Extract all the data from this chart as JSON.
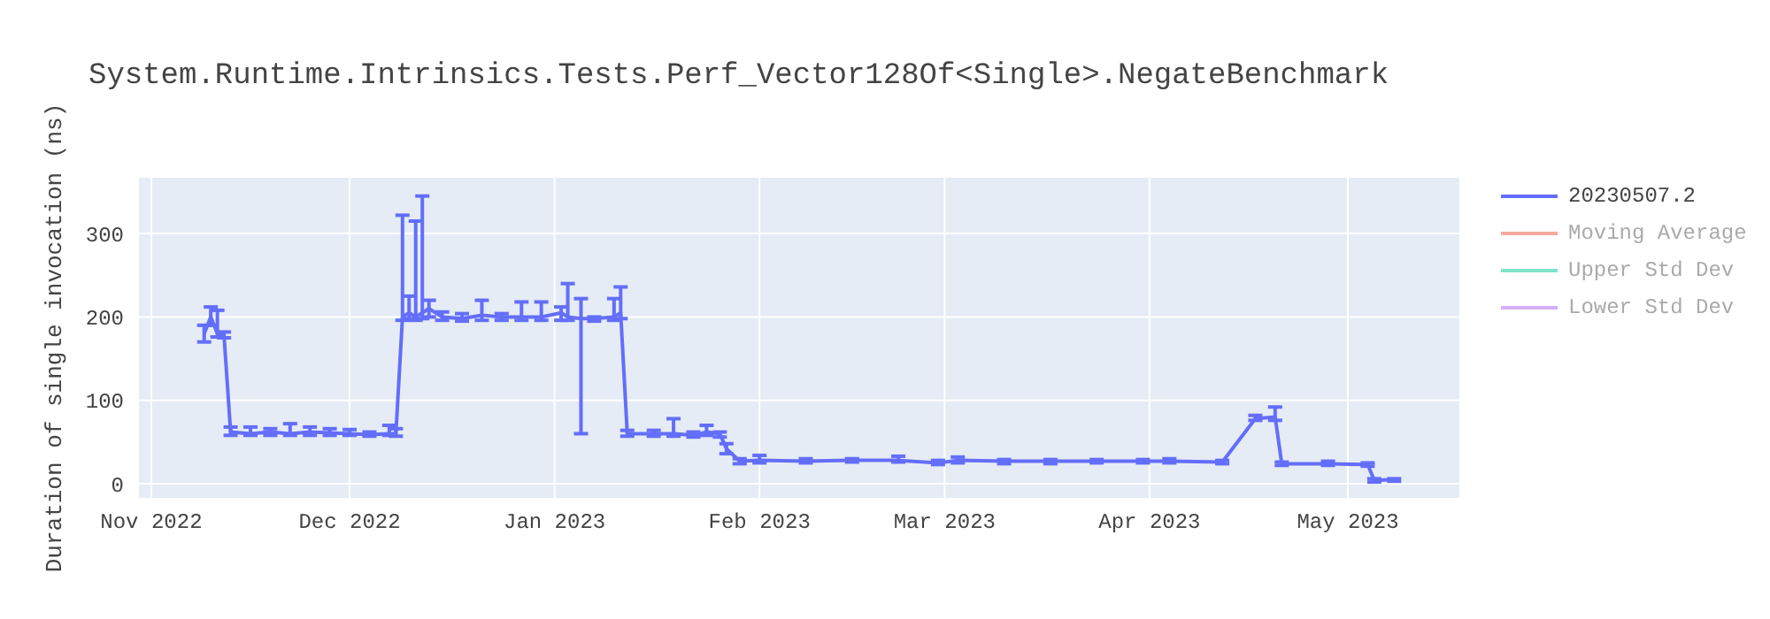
{
  "chart_data": {
    "type": "line",
    "title": "System.Runtime.Intrinsics.Tests.Perf_Vector128Of<Single>.NegateBenchmark",
    "ylabel": "Duration of single invocation (ns)",
    "x": [
      "2022-11-09",
      "2022-11-10",
      "2022-11-11",
      "2022-11-12",
      "2022-11-13",
      "2022-11-16",
      "2022-11-19",
      "2022-11-22",
      "2022-11-25",
      "2022-11-28",
      "2022-12-01",
      "2022-12-04",
      "2022-12-07",
      "2022-12-08",
      "2022-12-09",
      "2022-12-10",
      "2022-12-11",
      "2022-12-12",
      "2022-12-13",
      "2022-12-15",
      "2022-12-18",
      "2022-12-21",
      "2022-12-24",
      "2022-12-27",
      "2022-12-30",
      "2023-01-02",
      "2023-01-03",
      "2023-01-05",
      "2023-01-07",
      "2023-01-10",
      "2023-01-11",
      "2023-01-12",
      "2023-01-16",
      "2023-01-19",
      "2023-01-22",
      "2023-01-24",
      "2023-01-26",
      "2023-01-27",
      "2023-01-29",
      "2023-02-01",
      "2023-02-08",
      "2023-02-15",
      "2023-02-22",
      "2023-02-28",
      "2023-03-03",
      "2023-03-10",
      "2023-03-17",
      "2023-03-24",
      "2023-03-31",
      "2023-04-04",
      "2023-04-12",
      "2023-04-17",
      "2023-04-20",
      "2023-04-21",
      "2023-04-28",
      "2023-05-04",
      "2023-05-05",
      "2023-05-08"
    ],
    "series": [
      {
        "name": "20230507.2",
        "color": "#636efa",
        "values": [
          180,
          200,
          180,
          178,
          62,
          60,
          62,
          60,
          62,
          61,
          60,
          59,
          60,
          60,
          200,
          205,
          200,
          205,
          210,
          200,
          198,
          202,
          200,
          200,
          200,
          205,
          200,
          198,
          198,
          200,
          205,
          60,
          60,
          60,
          58,
          62,
          60,
          42,
          27,
          28,
          27,
          28,
          28,
          25,
          28,
          27,
          27,
          27,
          27,
          27,
          26,
          78,
          80,
          24,
          24,
          23,
          4,
          5
        ],
        "errors": [
          10,
          [
            190,
            212
          ],
          [
            176,
            208
          ],
          [
            175,
            182
          ],
          [
            58,
            68
          ],
          [
            58,
            68
          ],
          [
            58,
            66
          ],
          [
            58,
            72
          ],
          [
            58,
            68
          ],
          [
            58,
            66
          ],
          [
            58,
            65
          ],
          [
            57,
            62
          ],
          [
            58,
            70
          ],
          [
            57,
            66
          ],
          [
            196,
            322
          ],
          [
            198,
            225
          ],
          [
            196,
            315
          ],
          [
            198,
            345
          ],
          [
            200,
            220
          ],
          [
            196,
            206
          ],
          [
            195,
            204
          ],
          [
            196,
            220
          ],
          [
            196,
            204
          ],
          [
            196,
            218
          ],
          [
            196,
            218
          ],
          [
            196,
            212
          ],
          [
            196,
            240
          ],
          [
            60,
            222
          ],
          [
            195,
            200
          ],
          [
            196,
            222
          ],
          [
            198,
            236
          ],
          [
            57,
            64
          ],
          [
            57,
            64
          ],
          [
            57,
            78
          ],
          [
            56,
            62
          ],
          [
            58,
            70
          ],
          [
            56,
            62
          ],
          [
            36,
            48
          ],
          [
            24,
            30
          ],
          [
            25,
            34
          ],
          [
            25,
            30
          ],
          [
            26,
            30
          ],
          [
            26,
            33
          ],
          [
            23,
            28
          ],
          [
            25,
            32
          ],
          [
            24,
            29
          ],
          [
            24,
            29
          ],
          [
            25,
            29
          ],
          [
            25,
            29
          ],
          [
            25,
            30
          ],
          [
            24,
            28
          ],
          [
            76,
            82
          ],
          [
            76,
            92
          ],
          [
            22,
            26
          ],
          [
            22,
            27
          ],
          [
            21,
            25
          ],
          [
            2,
            6
          ],
          [
            3,
            6
          ]
        ]
      },
      {
        "name": "Moving Average",
        "color": "#ef553b",
        "values": [
          null,
          null,
          null,
          null,
          null,
          null,
          null,
          null,
          null,
          null,
          null,
          null,
          null,
          null,
          null,
          null,
          null,
          null,
          null,
          null,
          null,
          null,
          null,
          null,
          null,
          null,
          null,
          null,
          null,
          null,
          null,
          null,
          null,
          null,
          null,
          null,
          null,
          null,
          null,
          null,
          null,
          null,
          null,
          null,
          null,
          null,
          null,
          null,
          null,
          null,
          null,
          null,
          null,
          null,
          null,
          null,
          null,
          null
        ]
      },
      {
        "name": "Upper Std Dev",
        "color": "#00cc96",
        "values": [
          null,
          null,
          null,
          null,
          null,
          null,
          null,
          null,
          null,
          null,
          null,
          null,
          null,
          null,
          null,
          null,
          null,
          null,
          null,
          null,
          null,
          null,
          null,
          null,
          null,
          null,
          null,
          null,
          null,
          null,
          null,
          null,
          null,
          null,
          null,
          null,
          null,
          null,
          null,
          null,
          null,
          null,
          null,
          null,
          null,
          null,
          null,
          null,
          null,
          null,
          null,
          null,
          null,
          null,
          null,
          null,
          null,
          null
        ]
      },
      {
        "name": "Lower Std Dev",
        "color": "#ab63fa",
        "values": [
          null,
          null,
          null,
          null,
          null,
          null,
          null,
          null,
          null,
          null,
          null,
          null,
          null,
          null,
          null,
          null,
          null,
          null,
          null,
          null,
          null,
          null,
          null,
          null,
          null,
          null,
          null,
          null,
          null,
          null,
          null,
          null,
          null,
          null,
          null,
          null,
          null,
          null,
          null,
          null,
          null,
          null,
          null,
          null,
          null,
          null,
          null,
          null,
          null,
          null,
          null,
          null,
          null,
          null,
          null,
          null,
          null,
          null
        ]
      }
    ],
    "xlim": [
      "2022-10-30",
      "2023-05-18"
    ],
    "xticks": [
      {
        "value": "2022-11-01",
        "label": "Nov 2022"
      },
      {
        "value": "2022-12-01",
        "label": "Dec 2022"
      },
      {
        "value": "2023-01-01",
        "label": "Jan 2023"
      },
      {
        "value": "2023-02-01",
        "label": "Feb 2023"
      },
      {
        "value": "2023-03-01",
        "label": "Mar 2023"
      },
      {
        "value": "2023-04-01",
        "label": "Apr 2023"
      },
      {
        "value": "2023-05-01",
        "label": "May 2023"
      }
    ],
    "ylim": [
      -18,
      368
    ],
    "yticks": [
      0,
      100,
      200,
      300
    ],
    "grid": true,
    "legend": "top right",
    "marker": "none",
    "line_style": "solid"
  }
}
